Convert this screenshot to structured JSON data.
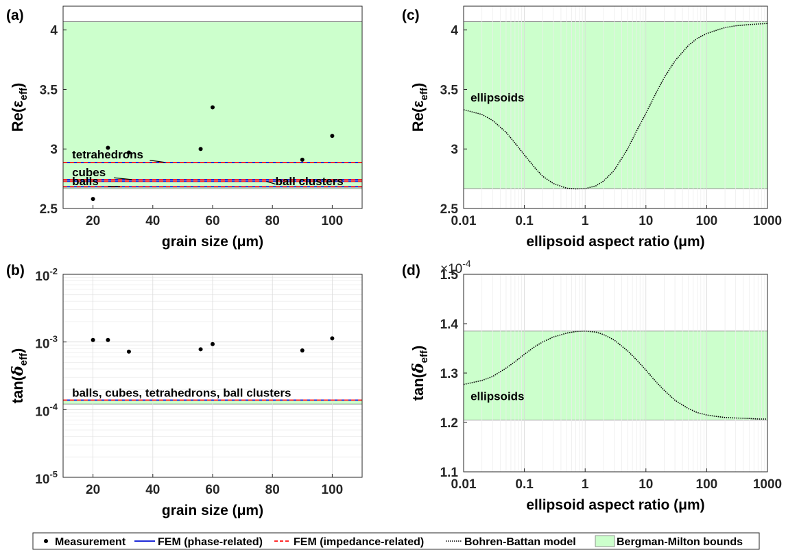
{
  "colors": {
    "bounds_fill": "#ccffcc",
    "fem_phase": "#1f2bd8",
    "fem_impedance": "#ff2a2a",
    "bohren": "#000000",
    "measurement": "#000000",
    "grid": "#e1e1e1",
    "axis": "#262626"
  },
  "legend": {
    "items": [
      {
        "label": "Measurement",
        "kind": "dot"
      },
      {
        "label": "FEM (phase-related)",
        "kind": "solid"
      },
      {
        "label": "FEM (impedance-related)",
        "kind": "dashed"
      },
      {
        "label": "Bohren-Battan model",
        "kind": "dotted"
      },
      {
        "label": "Bergman-Milton bounds",
        "kind": "patch"
      }
    ]
  },
  "chart_data": [
    {
      "panel": "(a)",
      "type": "scatter",
      "xlabel": "grain size (μm)",
      "ylabel": "Re(ε_eff)",
      "ylabel_main": "Re(ε",
      "ylabel_sub": "eff",
      "ylabel_tail": ")",
      "xscale": "linear",
      "yscale": "linear",
      "xlim": [
        10,
        110
      ],
      "ylim": [
        2.5,
        4.2
      ],
      "xticks": [
        20,
        40,
        60,
        80,
        100
      ],
      "xtick_labels": [
        "20",
        "40",
        "60",
        "80",
        "100"
      ],
      "yticks": [
        2.5,
        3,
        3.5,
        4
      ],
      "ytick_labels": [
        "2.5",
        "3",
        "3.5",
        "4"
      ],
      "grid": false,
      "bounds": [
        2.667,
        4.07
      ],
      "measurement": {
        "x": [
          20,
          25,
          32,
          56,
          60,
          90,
          100
        ],
        "y": [
          2.58,
          3.01,
          2.97,
          3.0,
          3.35,
          2.91,
          3.11
        ]
      },
      "fem_lines": [
        {
          "label": "tetrahedrons",
          "y": 2.886
        },
        {
          "label": "cubes",
          "y": 2.742
        },
        {
          "label": "ball clusters",
          "y": 2.728
        },
        {
          "label": "balls",
          "y": 2.683
        }
      ],
      "annotations": [
        {
          "text": "tetrahedrons",
          "x": 13,
          "y": 2.92,
          "lx0": 39,
          "ly0": 2.905,
          "lx1": 44,
          "ly1": 2.888
        },
        {
          "text": "cubes",
          "x": 13,
          "y": 2.77,
          "lx0": 27,
          "ly0": 2.758,
          "lx1": 33,
          "ly1": 2.743
        },
        {
          "text": "balls",
          "x": 13,
          "y": 2.695,
          "lx0": 25,
          "ly0": 2.685,
          "lx1": 29,
          "ly1": 2.687
        },
        {
          "text": "ball clusters",
          "x": 81,
          "y": 2.695,
          "lx0": 81,
          "ly0": 2.705,
          "lx1": 78,
          "ly1": 2.727
        }
      ]
    },
    {
      "panel": "(b)",
      "type": "scatter",
      "xlabel": "grain size (μm)",
      "ylabel": "tan(δ_eff)",
      "ylabel_main": "tan(",
      "ylabel_greek": "δ",
      "ylabel_sub": "eff",
      "ylabel_tail": ")",
      "xscale": "linear",
      "yscale": "log",
      "xlim": [
        10,
        110
      ],
      "ylim": [
        1e-05,
        0.01
      ],
      "xticks": [
        20,
        40,
        60,
        80,
        100
      ],
      "xtick_labels": [
        "20",
        "40",
        "60",
        "80",
        "100"
      ],
      "yticks": [
        1e-05,
        0.0001,
        0.001,
        0.01
      ],
      "ytick_labels": [
        {
          "base": "10",
          "exp": "-5"
        },
        {
          "base": "10",
          "exp": "-4"
        },
        {
          "base": "10",
          "exp": "-3"
        },
        {
          "base": "10",
          "exp": "-2"
        }
      ],
      "grid": true,
      "bounds": [
        0.000121,
        0.000139
      ],
      "measurement": {
        "x": [
          20,
          25,
          32,
          56,
          60,
          90,
          100
        ],
        "y": [
          0.00107,
          0.00107,
          0.00072,
          0.00078,
          0.00093,
          0.00075,
          0.00113
        ]
      },
      "fem_lines": [
        {
          "label": "balls, cubes, tetrahedrons, ball clusters",
          "y": 0.000138
        }
      ],
      "annotations": [
        {
          "text": "balls, cubes, tetrahedrons, ball clusters",
          "x": 13,
          "y": 0.000155
        }
      ]
    },
    {
      "panel": "(c)",
      "type": "line",
      "xlabel": "ellipsoid aspect ratio (μm)",
      "ylabel": "Re(ε_eff)",
      "ylabel_main": "Re(ε",
      "ylabel_sub": "eff",
      "ylabel_tail": ")",
      "xscale": "log",
      "yscale": "linear",
      "xlim": [
        0.01,
        1000
      ],
      "ylim": [
        2.5,
        4.2
      ],
      "xticks": [
        0.01,
        0.1,
        1,
        10,
        100,
        1000
      ],
      "xtick_labels": [
        "0.01",
        "0.1",
        "1",
        "10",
        "100",
        "1000"
      ],
      "yticks": [
        2.5,
        3,
        3.5,
        4
      ],
      "ytick_labels": [
        "2.5",
        "3",
        "3.5",
        "4"
      ],
      "grid": "x-minor",
      "bounds": [
        2.667,
        4.07
      ],
      "bohren_battan": {
        "x": [
          0.01,
          0.02,
          0.03,
          0.05,
          0.07,
          0.1,
          0.15,
          0.2,
          0.3,
          0.5,
          0.7,
          1,
          1.5,
          2,
          3,
          5,
          7,
          10,
          15,
          20,
          30,
          50,
          70,
          100,
          150,
          200,
          300,
          500,
          700,
          1000
        ],
        "y": [
          3.33,
          3.29,
          3.24,
          3.14,
          3.05,
          2.95,
          2.84,
          2.77,
          2.71,
          2.67,
          2.665,
          2.667,
          2.69,
          2.73,
          2.82,
          3.0,
          3.15,
          3.3,
          3.48,
          3.6,
          3.74,
          3.87,
          3.93,
          3.97,
          4.0,
          4.02,
          4.035,
          4.045,
          4.05,
          4.055
        ]
      },
      "annotations": [
        {
          "text": "ellipsoids",
          "x": 0.013,
          "y": 3.4
        }
      ]
    },
    {
      "panel": "(d)",
      "type": "line",
      "xlabel": "ellipsoid aspect ratio (μm)",
      "ylabel": "tan(δ_eff)",
      "ylabel_main": "tan(",
      "ylabel_greek": "δ",
      "ylabel_sub": "eff",
      "ylabel_tail": ")",
      "xscale": "log",
      "yscale": "linear",
      "xlim": [
        0.01,
        1000
      ],
      "ylim": [
        1.1,
        1.5
      ],
      "yscale_factor": {
        "base": "×10",
        "exp": "-4"
      },
      "xticks": [
        0.01,
        0.1,
        1,
        10,
        100,
        1000
      ],
      "xtick_labels": [
        "0.01",
        "0.1",
        "1",
        "10",
        "100",
        "1000"
      ],
      "yticks": [
        1.1,
        1.2,
        1.3,
        1.4,
        1.5
      ],
      "ytick_labels": [
        "1.1",
        "1.2",
        "1.3",
        "1.4",
        "1.5"
      ],
      "grid": "x-minor",
      "bounds": [
        1.205,
        1.385
      ],
      "bohren_battan": {
        "x": [
          0.01,
          0.02,
          0.03,
          0.05,
          0.07,
          0.1,
          0.15,
          0.2,
          0.3,
          0.5,
          0.7,
          1,
          1.5,
          2,
          3,
          5,
          7,
          10,
          15,
          20,
          30,
          50,
          70,
          100,
          150,
          200,
          300,
          500,
          700,
          1000
        ],
        "y": [
          1.277,
          1.285,
          1.293,
          1.31,
          1.323,
          1.338,
          1.354,
          1.363,
          1.373,
          1.381,
          1.384,
          1.385,
          1.383,
          1.378,
          1.367,
          1.345,
          1.327,
          1.306,
          1.281,
          1.265,
          1.245,
          1.228,
          1.22,
          1.215,
          1.212,
          1.21,
          1.209,
          1.208,
          1.207,
          1.207
        ]
      },
      "annotations": [
        {
          "text": "ellipsoids",
          "x": 0.013,
          "y": 1.245
        }
      ]
    }
  ]
}
